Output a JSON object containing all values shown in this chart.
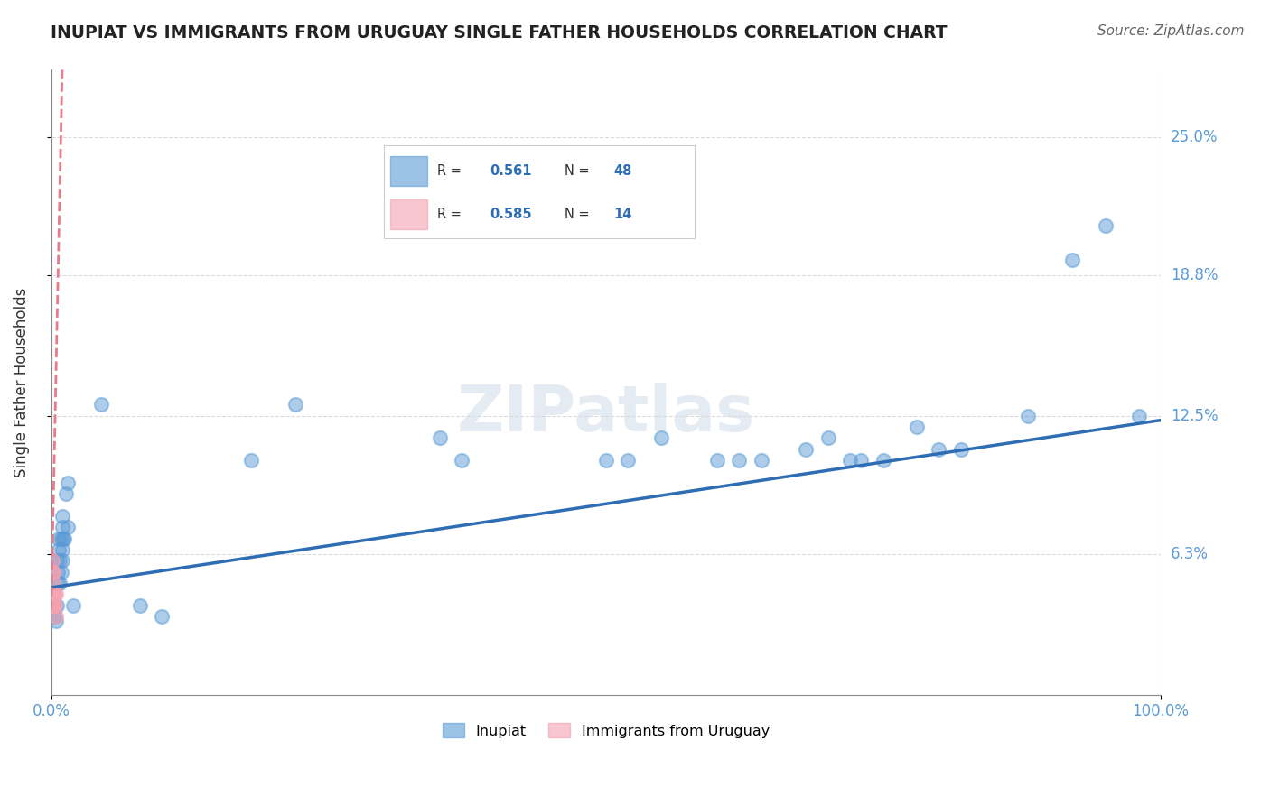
{
  "title": "INUPIAT VS IMMIGRANTS FROM URUGUAY SINGLE FATHER HOUSEHOLDS CORRELATION CHART",
  "source": "Source: ZipAtlas.com",
  "xlabel_ticks": [
    "0.0%",
    "100.0%"
  ],
  "ylabel_ticks": [
    "6.3%",
    "12.5%",
    "18.8%",
    "25.0%"
  ],
  "ylabel_label": "Single Father Households",
  "legend_entries": [
    {
      "label": "R =  0.561   N = 48",
      "color": "#a8c4e0"
    },
    {
      "label": "R =  0.585   N = 14",
      "color": "#f4a0b0"
    }
  ],
  "watermark": "ZIPatlas",
  "inupiat_scatter": [
    [
      0.002,
      0.04
    ],
    [
      0.003,
      0.035
    ],
    [
      0.004,
      0.033
    ],
    [
      0.005,
      0.04
    ],
    [
      0.005,
      0.06
    ],
    [
      0.006,
      0.05
    ],
    [
      0.006,
      0.055
    ],
    [
      0.007,
      0.065
    ],
    [
      0.007,
      0.07
    ],
    [
      0.008,
      0.05
    ],
    [
      0.008,
      0.06
    ],
    [
      0.009,
      0.055
    ],
    [
      0.009,
      0.07
    ],
    [
      0.01,
      0.065
    ],
    [
      0.01,
      0.06
    ],
    [
      0.01,
      0.075
    ],
    [
      0.01,
      0.08
    ],
    [
      0.011,
      0.07
    ],
    [
      0.012,
      0.07
    ],
    [
      0.013,
      0.09
    ],
    [
      0.015,
      0.075
    ],
    [
      0.015,
      0.095
    ],
    [
      0.02,
      0.04
    ],
    [
      0.045,
      0.13
    ],
    [
      0.08,
      0.04
    ],
    [
      0.1,
      0.035
    ],
    [
      0.18,
      0.105
    ],
    [
      0.22,
      0.13
    ],
    [
      0.35,
      0.115
    ],
    [
      0.37,
      0.105
    ],
    [
      0.5,
      0.105
    ],
    [
      0.52,
      0.105
    ],
    [
      0.55,
      0.115
    ],
    [
      0.6,
      0.105
    ],
    [
      0.62,
      0.105
    ],
    [
      0.64,
      0.105
    ],
    [
      0.68,
      0.11
    ],
    [
      0.7,
      0.115
    ],
    [
      0.72,
      0.105
    ],
    [
      0.73,
      0.105
    ],
    [
      0.75,
      0.105
    ],
    [
      0.78,
      0.12
    ],
    [
      0.8,
      0.11
    ],
    [
      0.82,
      0.11
    ],
    [
      0.88,
      0.125
    ],
    [
      0.92,
      0.195
    ],
    [
      0.95,
      0.21
    ],
    [
      0.98,
      0.125
    ]
  ],
  "uruguay_scatter": [
    [
      0.001,
      0.045
    ],
    [
      0.001,
      0.04
    ],
    [
      0.001,
      0.06
    ],
    [
      0.001,
      0.055
    ],
    [
      0.002,
      0.04
    ],
    [
      0.002,
      0.055
    ],
    [
      0.002,
      0.05
    ],
    [
      0.002,
      0.04
    ],
    [
      0.003,
      0.045
    ],
    [
      0.003,
      0.04
    ],
    [
      0.003,
      0.04
    ],
    [
      0.003,
      0.04
    ],
    [
      0.004,
      0.035
    ],
    [
      0.004,
      0.045
    ]
  ],
  "inupiat_line": [
    [
      0.0,
      0.048
    ],
    [
      1.0,
      0.123
    ]
  ],
  "uruguay_line": [
    [
      0.0,
      0.038
    ],
    [
      0.01,
      0.28
    ]
  ],
  "inupiat_color": "#5b9bd5",
  "uruguay_color": "#f4a0b0",
  "inupiat_line_color": "#2e6db4",
  "uruguay_line_color": "#e87a8a",
  "grid_color": "#cccccc",
  "background_color": "#ffffff",
  "xlim": [
    0.0,
    1.0
  ],
  "ylim": [
    0.0,
    0.28
  ],
  "ytick_vals": [
    0.063,
    0.125,
    0.188,
    0.25
  ],
  "ytick_labels": [
    "6.3%",
    "12.5%",
    "18.8%",
    "25.0%"
  ],
  "xtick_vals": [
    0.0,
    1.0
  ],
  "xtick_labels": [
    "0.0%",
    "100.0%"
  ]
}
